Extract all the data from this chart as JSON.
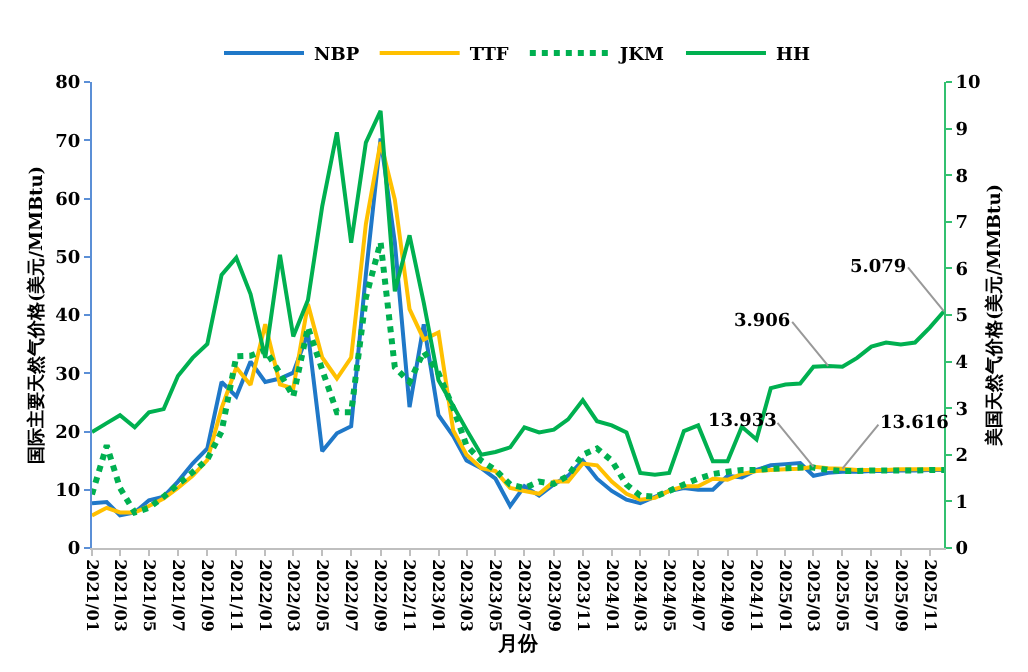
{
  "chart_data": {
    "type": "line",
    "xlabel": "月份",
    "ylabel": "国际主要天然气价格(美元/MMBtu)",
    "y2label": "美国天然气价格(美元/MMBtu)",
    "x": [
      "2021-01",
      "2021-02",
      "2021-03",
      "2021-04",
      "2021-05",
      "2021-06",
      "2021-07",
      "2021-08",
      "2021-09",
      "2021-10",
      "2021-11",
      "2021-12",
      "2022-01",
      "2022-02",
      "2022-03",
      "2022-04",
      "2022-05",
      "2022-06",
      "2022-07",
      "2022-08",
      "2022-09",
      "2022-10",
      "2022-11",
      "2022-12",
      "2023-01",
      "2023-02",
      "2023-03",
      "2023-04",
      "2023-05",
      "2023-06",
      "2023-07",
      "2023-08",
      "2023-09",
      "2023-10",
      "2023-11",
      "2023-12",
      "2024-01",
      "2024-02",
      "2024-03",
      "2024-04",
      "2024-05",
      "2024-06",
      "2024-07",
      "2024-08",
      "2024-09",
      "2024-10",
      "2024-11",
      "2024-12",
      "2025-01",
      "2025-02",
      "2025-03",
      "2025-04",
      "2025-05",
      "2025-06",
      "2025-07",
      "2025-08",
      "2025-09",
      "2025-10",
      "2025-11",
      "2025-12"
    ],
    "series": [
      {
        "name": "NBP",
        "color": "#1f78c8",
        "line_style": "solid",
        "values": [
          7.7,
          7.9,
          5.6,
          6.1,
          8.2,
          8.8,
          11.4,
          14.5,
          17.1,
          28.5,
          26,
          32,
          28.5,
          29.1,
          30.1,
          36.9,
          16.6,
          19.7,
          20.9,
          47,
          70.3,
          52.5,
          24.2,
          38.4,
          22.8,
          19.2,
          15,
          13.7,
          11.9,
          7.2,
          10.6,
          9,
          10.9,
          12.4,
          15,
          11.9,
          9.8,
          8.3,
          7.7,
          8.8,
          9.8,
          10.3,
          10,
          10,
          12.4,
          12.1,
          13.4,
          14.2,
          14.4,
          14.6,
          12.4,
          12.9,
          13.1,
          13.1,
          13.2,
          13.2,
          13.3,
          13.3,
          13.4,
          13.4
        ]
      },
      {
        "name": "TTF",
        "color": "#ffc000",
        "line_style": "solid",
        "value_labels": [
          null,
          null,
          null,
          null,
          null,
          null,
          null,
          null,
          null,
          null,
          null,
          null,
          null,
          null,
          null,
          null,
          null,
          null,
          null,
          null,
          null,
          null,
          null,
          null,
          null,
          null,
          null,
          null,
          null,
          null,
          null,
          null,
          null,
          null,
          null,
          null,
          null,
          null,
          null,
          null,
          null,
          null,
          null,
          null,
          null,
          null,
          null,
          null,
          null,
          null,
          "13.933",
          null,
          "13.616",
          null,
          null,
          null,
          null,
          null,
          null,
          null
        ],
        "values": [
          5.6,
          6.9,
          6.1,
          6.1,
          7.2,
          8.5,
          10.3,
          12.4,
          15.1,
          24,
          31,
          28,
          38.4,
          28.1,
          27.4,
          41.9,
          32.7,
          29.1,
          32.7,
          55.6,
          69.7,
          59.8,
          41,
          35.8,
          37,
          20.2,
          16,
          13.7,
          13.2,
          10.3,
          9.8,
          9.3,
          11.4,
          11.4,
          14.5,
          14.2,
          11.4,
          9.3,
          8.3,
          8.6,
          9.8,
          10.6,
          10.6,
          11.9,
          11.7,
          12.7,
          13.2,
          13.4,
          13.5,
          13.6,
          13.933,
          13.7,
          13.616,
          13.4,
          13.4,
          13.4,
          13.5,
          13.5,
          13.5,
          13.5
        ]
      },
      {
        "name": "JKM",
        "color": "#00b050",
        "line_style": "dotted",
        "values": [
          9.2,
          17.6,
          10.3,
          6.1,
          6.9,
          8.8,
          10.9,
          13,
          15.2,
          20,
          32.9,
          33,
          34,
          30,
          26,
          37.9,
          30.6,
          23.3,
          23.3,
          43,
          52.5,
          31,
          28.5,
          33.7,
          30,
          24,
          17.6,
          15,
          13.4,
          10.9,
          10.3,
          11.4,
          11,
          12.4,
          16,
          17.1,
          15,
          10.9,
          9,
          8.8,
          9.8,
          10.9,
          11.9,
          12.7,
          13.1,
          13.4,
          13.4,
          13.6,
          13.7,
          13.8,
          13.8,
          13.4,
          13.2,
          13.2,
          13.3,
          13.3,
          13.3,
          13.3,
          13.4,
          13.4
        ]
      },
      {
        "name": "HH",
        "color": "#00b050",
        "line_style": "solid",
        "axis": "y2",
        "value_labels": [
          null,
          null,
          null,
          null,
          null,
          null,
          null,
          null,
          null,
          null,
          null,
          null,
          null,
          null,
          null,
          null,
          null,
          null,
          null,
          null,
          null,
          null,
          null,
          null,
          null,
          null,
          null,
          null,
          null,
          null,
          null,
          null,
          null,
          null,
          null,
          null,
          null,
          null,
          null,
          null,
          null,
          null,
          null,
          null,
          null,
          null,
          null,
          null,
          null,
          null,
          null,
          "3.906",
          null,
          null,
          null,
          null,
          null,
          null,
          null,
          "5.079"
        ],
        "values": [
          2.49,
          2.68,
          2.85,
          2.59,
          2.91,
          2.98,
          3.69,
          4.08,
          4.38,
          5.86,
          6.23,
          5.45,
          4.08,
          6.29,
          4.54,
          5.32,
          7.33,
          8.92,
          6.55,
          8.7,
          9.38,
          5.51,
          6.71,
          5.26,
          3.6,
          3.05,
          2.54,
          2.0,
          2.06,
          2.16,
          2.59,
          2.48,
          2.54,
          2.76,
          3.17,
          2.72,
          2.63,
          2.48,
          1.61,
          1.57,
          1.61,
          2.51,
          2.63,
          1.86,
          1.86,
          2.6,
          2.33,
          3.43,
          3.51,
          3.53,
          3.89,
          3.906,
          3.89,
          4.08,
          4.32,
          4.41,
          4.37,
          4.41,
          4.73,
          5.079
        ]
      }
    ],
    "xlim": [
      "2021-01",
      "2025-12"
    ],
    "xticks": [
      {
        "value": "2021-01",
        "label": "2021/01"
      },
      {
        "value": "2021-03",
        "label": "2021/03"
      },
      {
        "value": "2021-05",
        "label": "2021/05"
      },
      {
        "value": "2021-07",
        "label": "2021/07"
      },
      {
        "value": "2021-09",
        "label": "2021/09"
      },
      {
        "value": "2021-11",
        "label": "2021/11"
      },
      {
        "value": "2022-01",
        "label": "2022/01"
      },
      {
        "value": "2022-03",
        "label": "2022/03"
      },
      {
        "value": "2022-05",
        "label": "2022/05"
      },
      {
        "value": "2022-07",
        "label": "2022/07"
      },
      {
        "value": "2022-09",
        "label": "2022/09"
      },
      {
        "value": "2022-11",
        "label": "2022/11"
      },
      {
        "value": "2023-01",
        "label": "2023/01"
      },
      {
        "value": "2023-03",
        "label": "2023/03"
      },
      {
        "value": "2023-05",
        "label": "2023/05"
      },
      {
        "value": "2023-07",
        "label": "2023/07"
      },
      {
        "value": "2023-09",
        "label": "2023/09"
      },
      {
        "value": "2023-11",
        "label": "2023/11"
      },
      {
        "value": "2024-01",
        "label": "2024/01"
      },
      {
        "value": "2024-03",
        "label": "2024/03"
      },
      {
        "value": "2024-05",
        "label": "2024/05"
      },
      {
        "value": "2024-07",
        "label": "2024/07"
      },
      {
        "value": "2024-09",
        "label": "2024/09"
      },
      {
        "value": "2024-11",
        "label": "2024/11"
      },
      {
        "value": "2025-01",
        "label": "2025/01"
      },
      {
        "value": "2025-03",
        "label": "2025/03"
      },
      {
        "value": "2025-05",
        "label": "2025/05"
      },
      {
        "value": "2025-07",
        "label": "2025/07"
      },
      {
        "value": "2025-09",
        "label": "2025/09"
      },
      {
        "value": "2025-11",
        "label": "2025/11"
      }
    ],
    "ylim": [
      0,
      80
    ],
    "yticks": [
      0,
      10,
      20,
      30,
      40,
      50,
      60,
      70,
      80
    ],
    "y2lim": [
      0,
      10
    ],
    "y2ticks": [
      0,
      1,
      2,
      3,
      4,
      5,
      6,
      7,
      8,
      9,
      10
    ],
    "legend": "top",
    "marker": "none"
  }
}
